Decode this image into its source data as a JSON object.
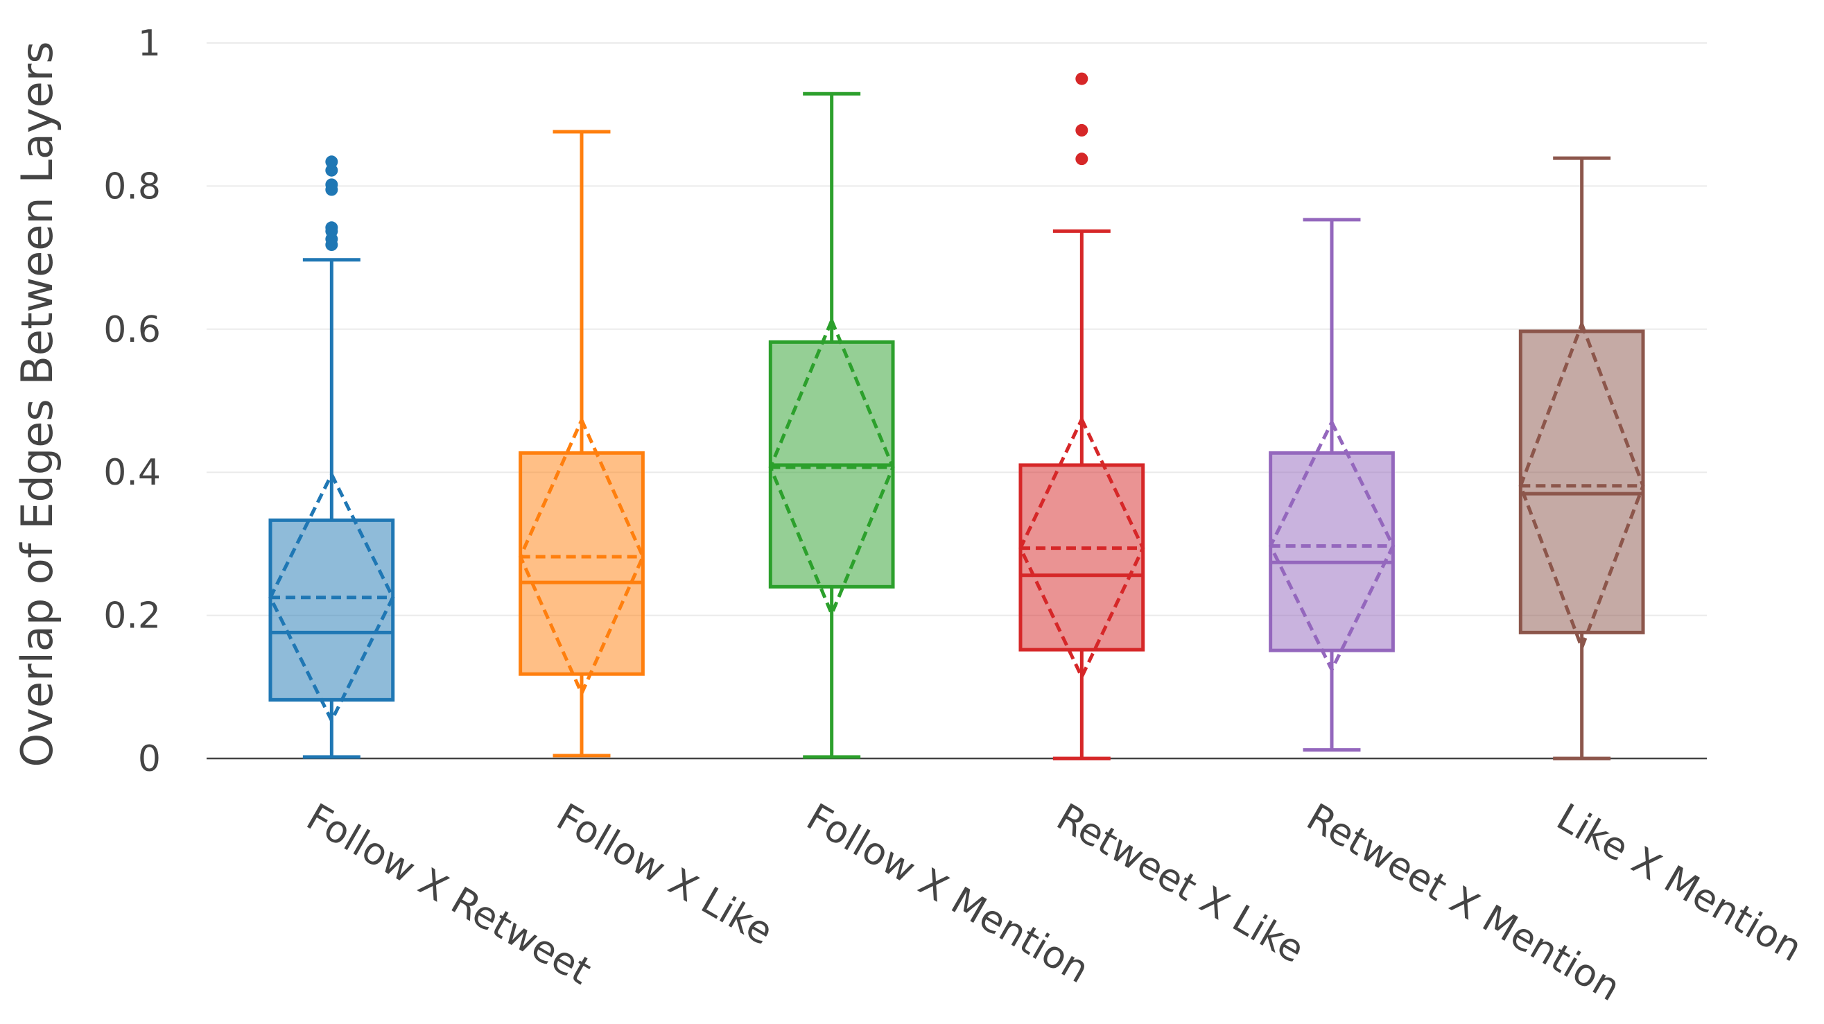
{
  "chart_data": {
    "type": "box",
    "title": "",
    "xlabel": "",
    "ylabel": "Overlap of Edges Between Layers",
    "ylim": [
      0,
      1
    ],
    "yticks": [
      0,
      0.2,
      0.4,
      0.6,
      0.8,
      1
    ],
    "ytick_labels": [
      "0",
      "0.2",
      "0.4",
      "0.6",
      "0.8",
      "1"
    ],
    "grid": true,
    "legend": "none",
    "boxmean": "sd",
    "categories": [
      "Follow X Retweet",
      "Follow X Like",
      "Follow X Mention",
      "Retweet X Like",
      "Retweet X Mention",
      "Like X Mention"
    ],
    "series": [
      {
        "category": "Follow X Retweet",
        "color": "#1f77b4",
        "min": 0.002,
        "q1": 0.082,
        "median": 0.176,
        "q3": 0.333,
        "max": 0.697,
        "mean": 0.225,
        "sd": 0.172,
        "outliers": [
          0.718,
          0.726,
          0.737,
          0.742,
          0.795,
          0.802,
          0.822,
          0.834
        ]
      },
      {
        "category": "Follow X Like",
        "color": "#ff7f0e",
        "min": 0.004,
        "q1": 0.118,
        "median": 0.246,
        "q3": 0.427,
        "max": 0.876,
        "mean": 0.282,
        "sd": 0.191,
        "outliers": []
      },
      {
        "category": "Follow X Mention",
        "color": "#2ca02c",
        "min": 0.002,
        "q1": 0.24,
        "median": 0.41,
        "q3": 0.582,
        "max": 0.929,
        "mean": 0.407,
        "sd": 0.205,
        "outliers": []
      },
      {
        "category": "Retweet X Like",
        "color": "#d62728",
        "min": 0.0,
        "q1": 0.152,
        "median": 0.256,
        "q3": 0.41,
        "max": 0.737,
        "mean": 0.294,
        "sd": 0.18,
        "outliers": [
          0.838,
          0.878,
          0.95
        ]
      },
      {
        "category": "Retweet X Mention",
        "color": "#9467bd",
        "min": 0.012,
        "q1": 0.151,
        "median": 0.274,
        "q3": 0.427,
        "max": 0.753,
        "mean": 0.297,
        "sd": 0.173,
        "outliers": []
      },
      {
        "category": "Like X Mention",
        "color": "#8c564b",
        "min": 0.0,
        "q1": 0.176,
        "median": 0.37,
        "q3": 0.597,
        "max": 0.839,
        "mean": 0.381,
        "sd": 0.226,
        "outliers": []
      }
    ]
  }
}
